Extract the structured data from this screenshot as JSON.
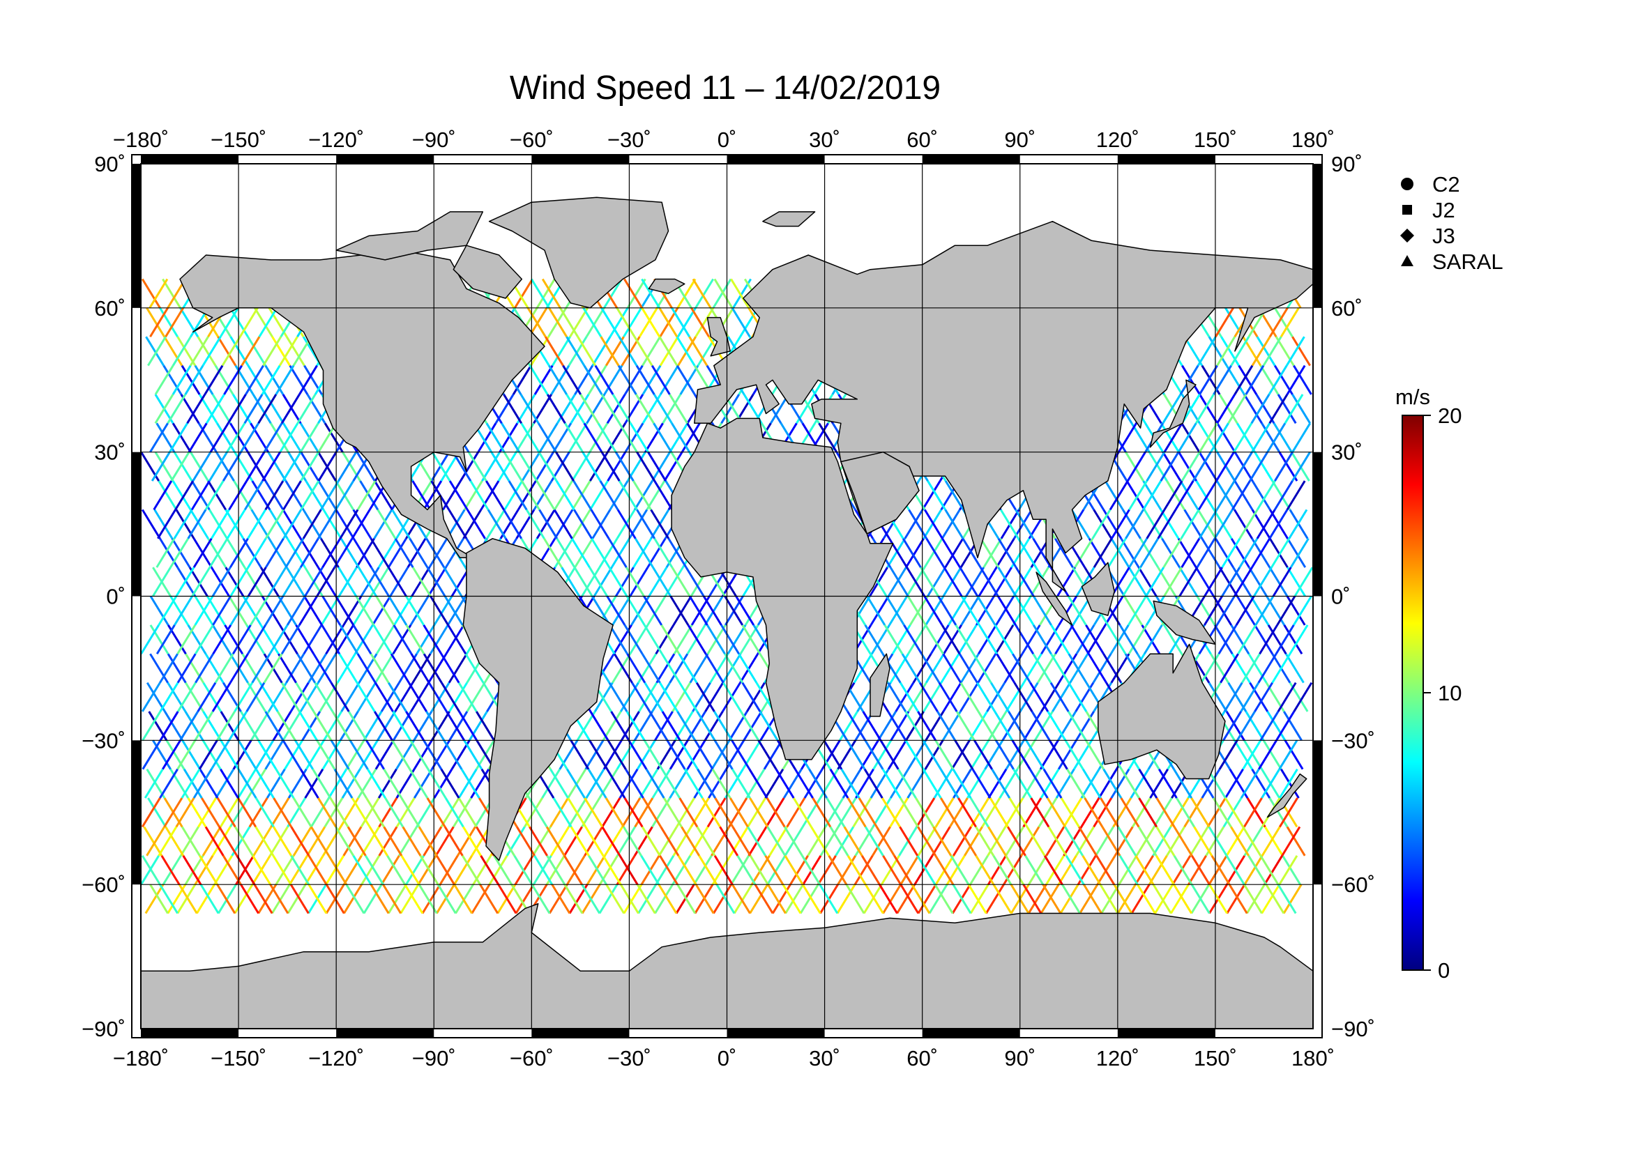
{
  "title": "Wind Speed 11 – 14/02/2019",
  "map": {
    "projection": "plate-carree",
    "lon_range": [
      -180,
      180
    ],
    "lat_range": [
      -90,
      90
    ],
    "grid": true,
    "land_color": "#bebebe",
    "ocean_color": "#ffffff"
  },
  "lon_ticks": [
    {
      "value": -180,
      "label": "−180˚"
    },
    {
      "value": -150,
      "label": "−150˚"
    },
    {
      "value": -120,
      "label": "−120˚"
    },
    {
      "value": -90,
      "label": "−90˚"
    },
    {
      "value": -60,
      "label": "−60˚"
    },
    {
      "value": -30,
      "label": "−30˚"
    },
    {
      "value": 0,
      "label": "0˚"
    },
    {
      "value": 30,
      "label": "30˚"
    },
    {
      "value": 60,
      "label": "60˚"
    },
    {
      "value": 90,
      "label": "90˚"
    },
    {
      "value": 120,
      "label": "120˚"
    },
    {
      "value": 150,
      "label": "150˚"
    },
    {
      "value": 180,
      "label": "180˚"
    }
  ],
  "lat_ticks": [
    {
      "value": 90,
      "label": "90˚"
    },
    {
      "value": 60,
      "label": "60˚"
    },
    {
      "value": 30,
      "label": "30˚"
    },
    {
      "value": 0,
      "label": "0˚"
    },
    {
      "value": -30,
      "label": "−30˚"
    },
    {
      "value": -60,
      "label": "−60˚"
    },
    {
      "value": -90,
      "label": "−90˚"
    }
  ],
  "legend": {
    "placement": "top-right",
    "items": [
      {
        "label": "C2",
        "symbol": "circle"
      },
      {
        "label": "J2",
        "symbol": "square"
      },
      {
        "label": "J3",
        "symbol": "diamond"
      },
      {
        "label": "SARAL",
        "symbol": "triangle"
      }
    ]
  },
  "colorbar": {
    "unit": "m/s",
    "min": 0,
    "max": 20,
    "ticks": [
      {
        "value": 20,
        "label": "20"
      },
      {
        "value": 10,
        "label": "10"
      },
      {
        "value": 0,
        "label": "0"
      }
    ],
    "colormap": [
      "#00007f",
      "#0000ff",
      "#007fff",
      "#00ffff",
      "#7fff7f",
      "#ffff00",
      "#ff7f00",
      "#ff0000",
      "#7f0000"
    ]
  },
  "track_coverage": {
    "lat_limits": [
      -66,
      66
    ],
    "typical_speed_ranges": [
      {
        "lat_band": [
          -66,
          -45
        ],
        "speed": [
          8,
          18
        ]
      },
      {
        "lat_band": [
          -45,
          45
        ],
        "speed": [
          1,
          10
        ]
      },
      {
        "lat_band": [
          45,
          66
        ],
        "speed": [
          6,
          16
        ]
      }
    ]
  }
}
